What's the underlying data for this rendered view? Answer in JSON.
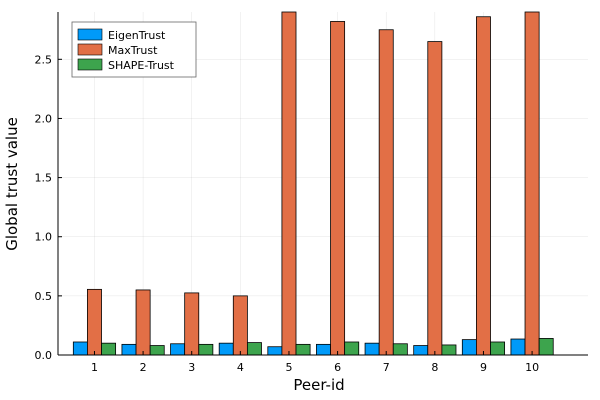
{
  "chart_data": {
    "type": "bar",
    "title": "",
    "xlabel": "Peer-id",
    "ylabel": "Global trust value",
    "categories": [
      "1",
      "2",
      "3",
      "4",
      "5",
      "6",
      "7",
      "8",
      "9",
      "10"
    ],
    "x": [
      1,
      2,
      3,
      4,
      5,
      6,
      7,
      8,
      9,
      10
    ],
    "xlim": [
      0.25,
      11.15
    ],
    "ylim": [
      0,
      2.9
    ],
    "yticks": [
      0.0,
      0.5,
      1.0,
      1.5,
      2.0,
      2.5
    ],
    "ytick_labels": [
      "0.0",
      "0.5",
      "1.0",
      "1.5",
      "2.0",
      "2.5"
    ],
    "grid": true,
    "legend_position": "top-left",
    "series": [
      {
        "name": "EigenTrust",
        "color": "#009af9",
        "values": [
          0.11,
          0.09,
          0.095,
          0.1,
          0.07,
          0.09,
          0.1,
          0.08,
          0.13,
          0.135
        ]
      },
      {
        "name": "MaxTrust",
        "color": "#e26f46",
        "values": [
          0.555,
          0.55,
          0.525,
          0.5,
          2.98,
          2.82,
          2.75,
          2.65,
          2.86,
          2.95
        ]
      },
      {
        "name": "SHAPE-Trust",
        "color": "#3da44d",
        "values": [
          0.1,
          0.08,
          0.09,
          0.105,
          0.09,
          0.11,
          0.095,
          0.085,
          0.11,
          0.14
        ]
      }
    ]
  }
}
